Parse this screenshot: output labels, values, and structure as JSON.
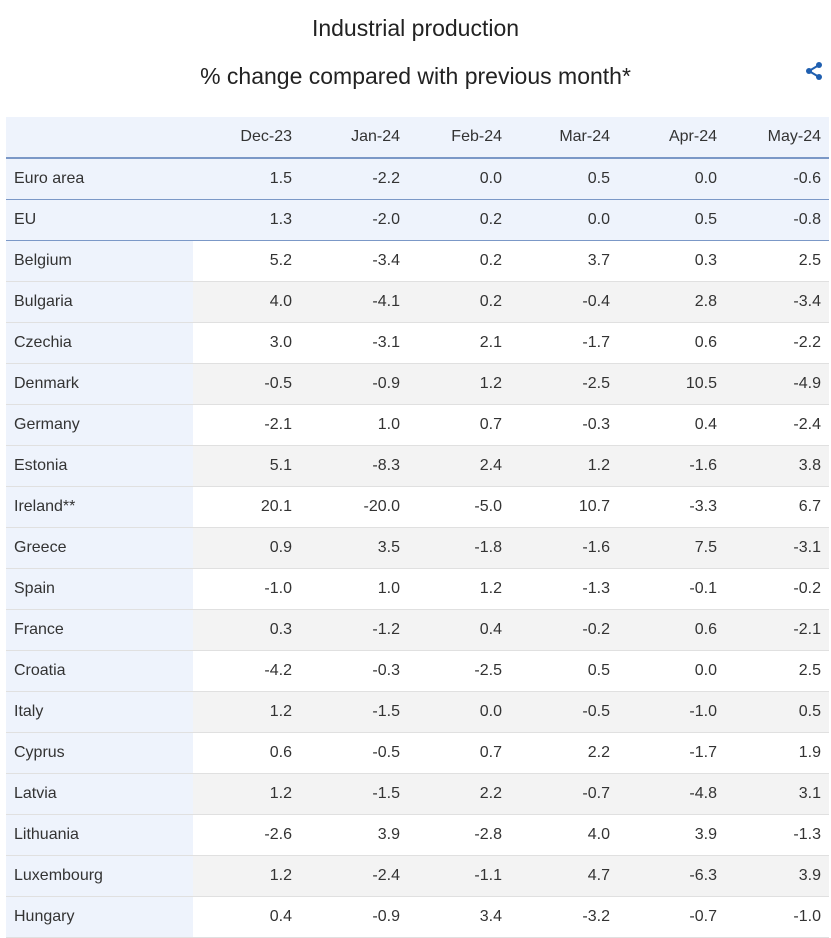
{
  "chart_data": {
    "type": "table",
    "title": "Industrial production",
    "subtitle": "% change compared with previous month*",
    "columns": [
      "Dec-23",
      "Jan-24",
      "Feb-24",
      "Mar-24",
      "Apr-24",
      "May-24"
    ],
    "rows": [
      {
        "name": "Euro area",
        "values": [
          "1.5",
          "-2.2",
          "0.0",
          "0.5",
          "0.0",
          "-0.6"
        ],
        "aggregate": true
      },
      {
        "name": "EU",
        "values": [
          "1.3",
          "-2.0",
          "0.2",
          "0.0",
          "0.5",
          "-0.8"
        ],
        "aggregate": true
      },
      {
        "name": "Belgium",
        "values": [
          "5.2",
          "-3.4",
          "0.2",
          "3.7",
          "0.3",
          "2.5"
        ]
      },
      {
        "name": "Bulgaria",
        "values": [
          "4.0",
          "-4.1",
          "0.2",
          "-0.4",
          "2.8",
          "-3.4"
        ]
      },
      {
        "name": "Czechia",
        "values": [
          "3.0",
          "-3.1",
          "2.1",
          "-1.7",
          "0.6",
          "-2.2"
        ]
      },
      {
        "name": "Denmark",
        "values": [
          "-0.5",
          "-0.9",
          "1.2",
          "-2.5",
          "10.5",
          "-4.9"
        ]
      },
      {
        "name": "Germany",
        "values": [
          "-2.1",
          "1.0",
          "0.7",
          "-0.3",
          "0.4",
          "-2.4"
        ]
      },
      {
        "name": "Estonia",
        "values": [
          "5.1",
          "-8.3",
          "2.4",
          "1.2",
          "-1.6",
          "3.8"
        ]
      },
      {
        "name": "Ireland**",
        "values": [
          "20.1",
          "-20.0",
          "-5.0",
          "10.7",
          "-3.3",
          "6.7"
        ]
      },
      {
        "name": "Greece",
        "values": [
          "0.9",
          "3.5",
          "-1.8",
          "-1.6",
          "7.5",
          "-3.1"
        ]
      },
      {
        "name": "Spain",
        "values": [
          "-1.0",
          "1.0",
          "1.2",
          "-1.3",
          "-0.1",
          "-0.2"
        ]
      },
      {
        "name": "France",
        "values": [
          "0.3",
          "-1.2",
          "0.4",
          "-0.2",
          "0.6",
          "-2.1"
        ]
      },
      {
        "name": "Croatia",
        "values": [
          "-4.2",
          "-0.3",
          "-2.5",
          "0.5",
          "0.0",
          "2.5"
        ]
      },
      {
        "name": "Italy",
        "values": [
          "1.2",
          "-1.5",
          "0.0",
          "-0.5",
          "-1.0",
          "0.5"
        ]
      },
      {
        "name": "Cyprus",
        "values": [
          "0.6",
          "-0.5",
          "0.7",
          "2.2",
          "-1.7",
          "1.9"
        ]
      },
      {
        "name": "Latvia",
        "values": [
          "1.2",
          "-1.5",
          "2.2",
          "-0.7",
          "-4.8",
          "3.1"
        ]
      },
      {
        "name": "Lithuania",
        "values": [
          "-2.6",
          "3.9",
          "-2.8",
          "4.0",
          "3.9",
          "-1.3"
        ]
      },
      {
        "name": "Luxembourg",
        "values": [
          "1.2",
          "-2.4",
          "-1.1",
          "4.7",
          "-6.3",
          "3.9"
        ]
      },
      {
        "name": "Hungary",
        "values": [
          "0.4",
          "-0.9",
          "3.4",
          "-3.2",
          "-0.7",
          "-1.0"
        ]
      }
    ]
  },
  "icons": {
    "share": "share-icon"
  },
  "colors": {
    "accent": "#1f5fb0",
    "header_bg": "#eef3fc",
    "rule": "#7b98c7",
    "zebra": "#f3f3f3"
  }
}
